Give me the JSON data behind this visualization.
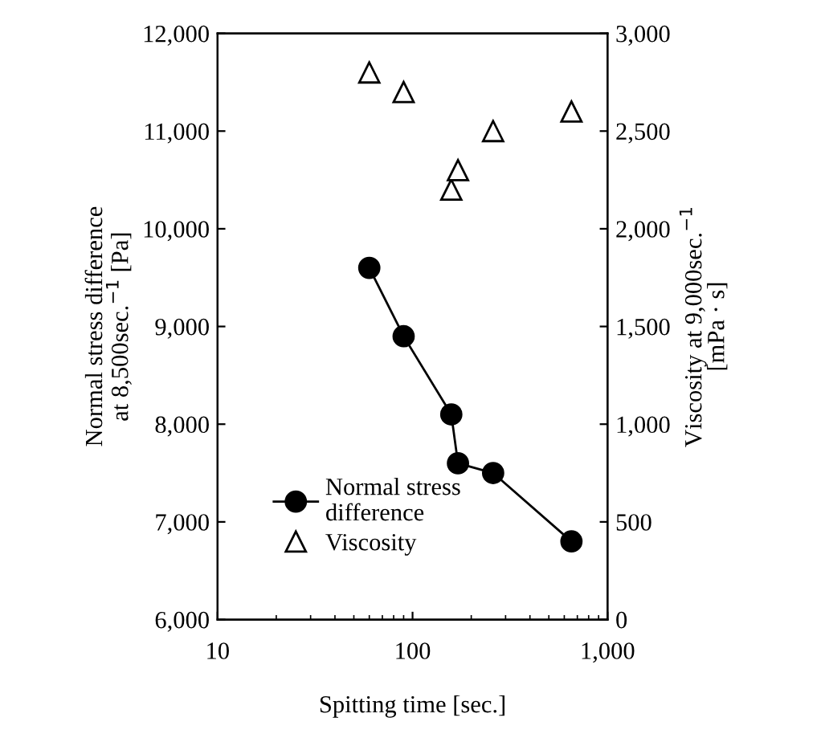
{
  "chart_data": {
    "type": "line",
    "xlabel": "Spitting time [sec.]",
    "ylabel": "Normal stress difference\nat 8,500sec.$^{−1}$ [Pa]",
    "y2label": "Viscosity at 9,000sec.$^{−1}$\n[mPa · s]",
    "log": "x",
    "xlim": [
      10,
      1000
    ],
    "xticks": [
      10,
      100,
      {
        "value": 1000,
        "label": "1,000"
      }
    ],
    "ylim": [
      6000,
      12000
    ],
    "yticks": [
      {
        "value": 6000,
        "label": "6,000"
      },
      {
        "value": 7000,
        "label": "7,000"
      },
      {
        "value": 8000,
        "label": "8,000"
      },
      {
        "value": 9000,
        "label": "9,000"
      },
      {
        "value": 10000,
        "label": "10,000"
      },
      {
        "value": 11000,
        "label": "11,000"
      },
      {
        "value": 12000,
        "label": "12,000"
      }
    ],
    "y2lim": [
      0,
      3000
    ],
    "y2ticks": [
      0,
      500,
      {
        "value": 1000,
        "label": "1,000"
      },
      {
        "value": 1500,
        "label": "1,500"
      },
      {
        "value": 2000,
        "label": "2,000"
      },
      {
        "value": 2500,
        "label": "2,500"
      },
      {
        "value": 3000,
        "label": "3,000"
      }
    ],
    "grid": false,
    "legend": "bottom left",
    "series": [
      {
        "name": "Normal stress\ndifference",
        "color": "#000000",
        "marker": "circle",
        "line_style": "solid",
        "x": [
          60,
          90,
          158,
          171,
          259,
          653
        ],
        "values": [
          9600,
          8900,
          8100,
          7600,
          7500,
          6800
        ]
      },
      {
        "name": "Viscosity",
        "type": "scatter",
        "axis": "y2",
        "color": "#000000",
        "marker": "triangle",
        "x": [
          60,
          90,
          158,
          171,
          259,
          653
        ],
        "values": [
          2800,
          2700,
          2200,
          2300,
          2500,
          2600
        ]
      }
    ]
  }
}
